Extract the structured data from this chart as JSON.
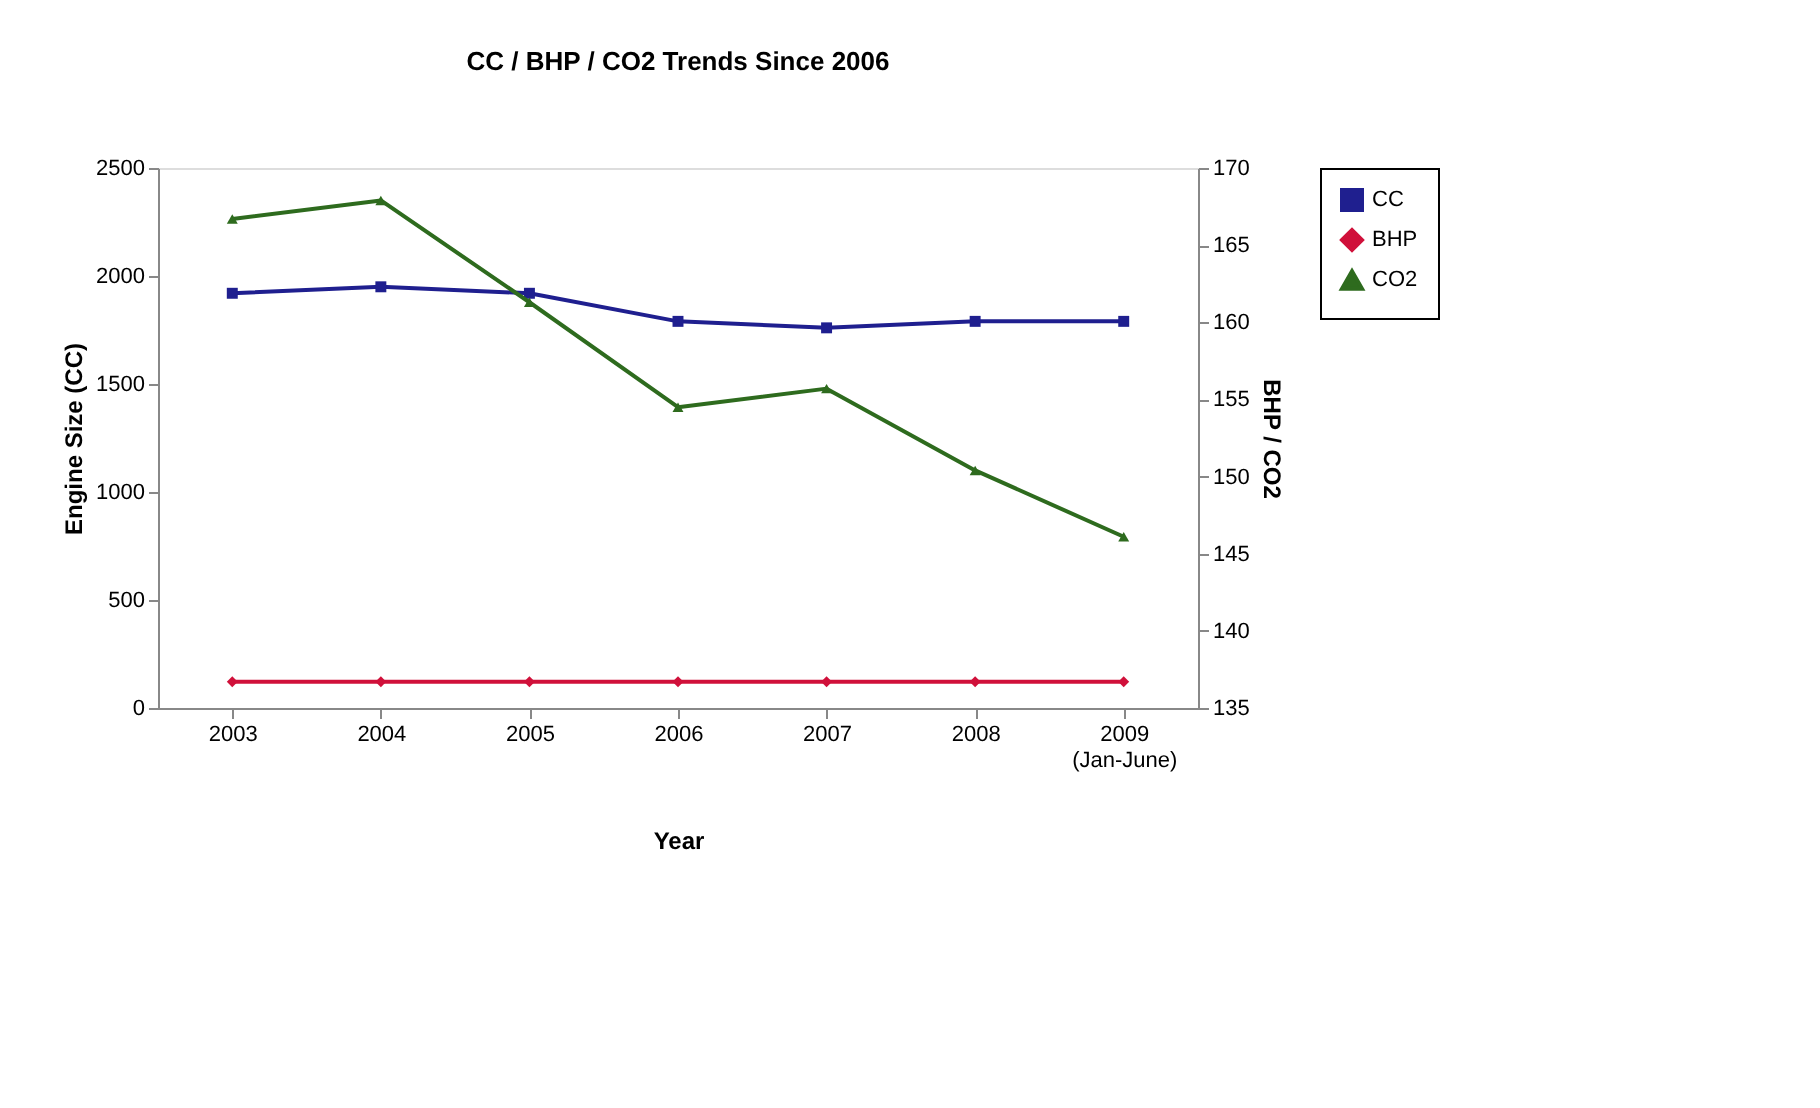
{
  "chart_data": {
    "type": "line",
    "title": "CC / BHP / CO2 Trends Since 2006",
    "xlabel": "Year",
    "ylabel": "Engine Size (CC)",
    "y2label": "BHP / CO2",
    "categories": [
      "2003",
      "2004",
      "2005",
      "2006",
      "2007",
      "2008",
      "2009 (Jan-June)"
    ],
    "series": [
      {
        "name": "CC",
        "color": "#1f1f8f",
        "axis": "y",
        "marker": "square",
        "values": [
          1920,
          1950,
          1920,
          1790,
          1760,
          1790,
          1790
        ]
      },
      {
        "name": "BHP",
        "color": "#d0103a",
        "axis": "y2",
        "marker": "diamond",
        "values": [
          136.7,
          136.7,
          136.7,
          136.7,
          136.7,
          136.7,
          136.7
        ]
      },
      {
        "name": "CO2",
        "color": "#2e6b1e",
        "axis": "y2",
        "marker": "triangle",
        "values": [
          166.7,
          167.9,
          161.3,
          154.5,
          155.7,
          150.4,
          146.1
        ]
      }
    ],
    "ylim": [
      0,
      2500
    ],
    "yticks": [
      0,
      500,
      1000,
      1500,
      2000,
      2500
    ],
    "y2lim": [
      135,
      170
    ],
    "y2ticks": [
      135,
      140,
      145,
      150,
      155,
      160,
      165,
      170
    ],
    "grid": false,
    "legend": "right"
  }
}
